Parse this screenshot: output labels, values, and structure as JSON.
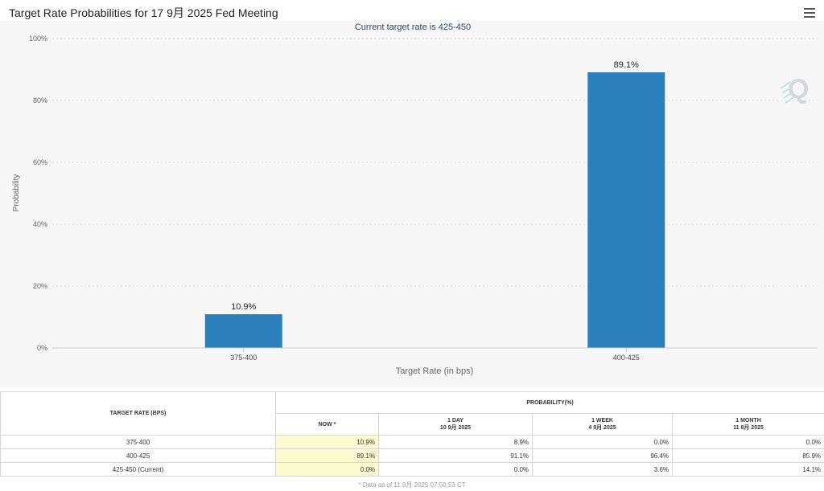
{
  "header": {
    "title": "Target Rate Probabilities for 17 9月 2025 Fed Meeting"
  },
  "chart_data": {
    "type": "bar",
    "title": "Target Rate Probabilities for 17 9月 2025 Fed Meeting",
    "subtitle": "Current target rate is 425-450",
    "xlabel": "Target Rate (in bps)",
    "ylabel": "Probability",
    "categories": [
      "375-400",
      "400-425"
    ],
    "values": [
      10.9,
      89.1
    ],
    "data_labels": [
      "10.9%",
      "89.1%"
    ],
    "ylim": [
      0,
      100
    ],
    "yticks": [
      0,
      20,
      40,
      60,
      80,
      100
    ],
    "ytick_labels": [
      "0%",
      "20%",
      "40%",
      "60%",
      "80%",
      "100%"
    ],
    "grid": true,
    "bar_color": "#2b7fbb"
  },
  "table": {
    "col_rate_header": "TARGET RATE (BPS)",
    "col_prob_header": "PROBABILITY(%)",
    "sub_headers": [
      {
        "label": "NOW *",
        "date": ""
      },
      {
        "label": "1 DAY",
        "date": "10 9月 2025"
      },
      {
        "label": "1 WEEK",
        "date": "4 9月 2025"
      },
      {
        "label": "1 MONTH",
        "date": "11 8月 2025"
      }
    ],
    "rows": [
      {
        "rate": "375-400",
        "values": [
          "10.9%",
          "8.9%",
          "0.0%",
          "0.0%"
        ]
      },
      {
        "rate": "400-425",
        "values": [
          "89.1%",
          "91.1%",
          "96.4%",
          "85.9%"
        ]
      },
      {
        "rate": "425-450 (Current)",
        "values": [
          "0.0%",
          "0.0%",
          "3.6%",
          "14.1%"
        ]
      }
    ],
    "footnote": "* Data as of 11 9月 2025 07:50:53 CT"
  }
}
